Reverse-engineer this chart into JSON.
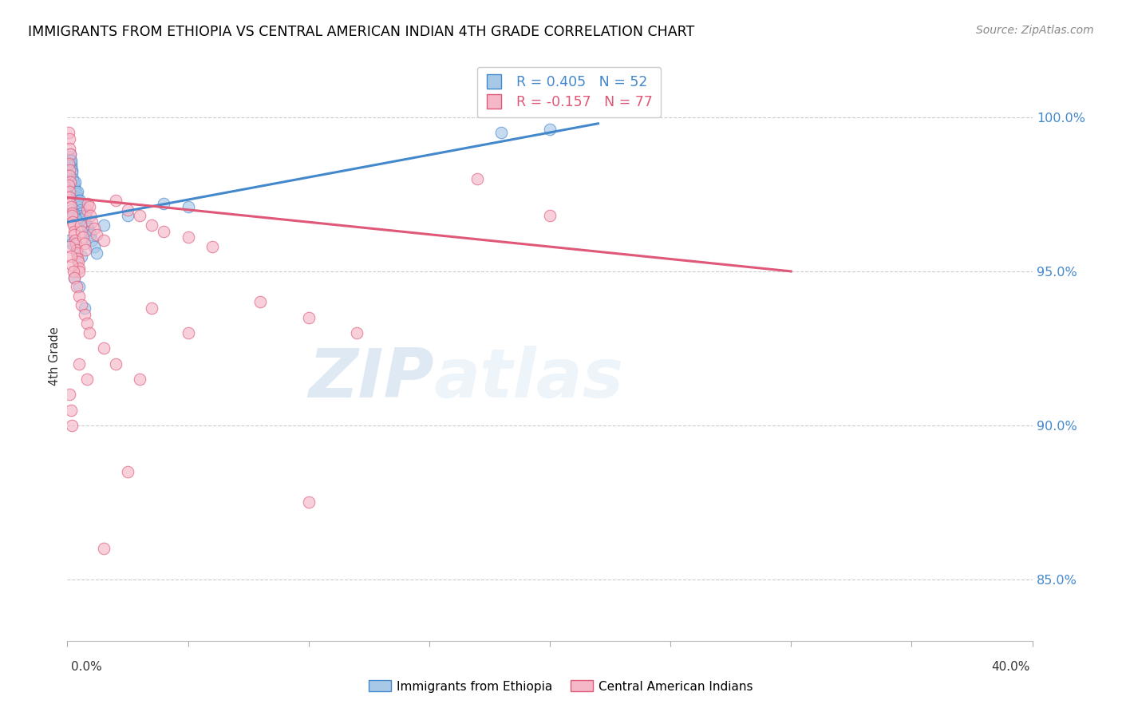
{
  "title": "IMMIGRANTS FROM ETHIOPIA VS CENTRAL AMERICAN INDIAN 4TH GRADE CORRELATION CHART",
  "source": "Source: ZipAtlas.com",
  "ylabel": "4th Grade",
  "ytick_values": [
    85.0,
    90.0,
    95.0,
    100.0
  ],
  "legend_label_blue": "Immigrants from Ethiopia",
  "legend_label_pink": "Central American Indians",
  "watermark_zip": "ZIP",
  "watermark_atlas": "atlas",
  "blue_color": "#a8c8e8",
  "pink_color": "#f4b8c8",
  "line_blue": "#4488cc",
  "line_pink": "#e05878",
  "blue_scatter": [
    [
      0.05,
      98.6
    ],
    [
      0.08,
      98.5
    ],
    [
      0.1,
      98.7
    ],
    [
      0.12,
      98.8
    ],
    [
      0.13,
      98.6
    ],
    [
      0.14,
      98.5
    ],
    [
      0.15,
      98.4
    ],
    [
      0.16,
      98.6
    ],
    [
      0.18,
      98.3
    ],
    [
      0.2,
      98.2
    ],
    [
      0.22,
      98.0
    ],
    [
      0.25,
      97.9
    ],
    [
      0.28,
      97.8
    ],
    [
      0.3,
      97.7
    ],
    [
      0.32,
      97.9
    ],
    [
      0.35,
      97.6
    ],
    [
      0.38,
      97.5
    ],
    [
      0.4,
      97.4
    ],
    [
      0.42,
      97.6
    ],
    [
      0.45,
      97.3
    ],
    [
      0.48,
      97.2
    ],
    [
      0.5,
      97.1
    ],
    [
      0.52,
      97.3
    ],
    [
      0.55,
      97.0
    ],
    [
      0.58,
      96.9
    ],
    [
      0.6,
      96.8
    ],
    [
      0.65,
      96.7
    ],
    [
      0.7,
      96.6
    ],
    [
      0.75,
      96.8
    ],
    [
      0.8,
      96.5
    ],
    [
      0.85,
      96.4
    ],
    [
      0.9,
      96.3
    ],
    [
      0.95,
      96.2
    ],
    [
      1.0,
      96.0
    ],
    [
      1.1,
      95.8
    ],
    [
      1.2,
      95.6
    ],
    [
      1.5,
      96.5
    ],
    [
      2.5,
      96.8
    ],
    [
      0.3,
      94.8
    ],
    [
      0.5,
      94.5
    ],
    [
      0.7,
      93.8
    ],
    [
      18.0,
      99.5
    ],
    [
      20.0,
      99.6
    ],
    [
      0.1,
      96.0
    ],
    [
      0.2,
      95.9
    ],
    [
      0.4,
      95.7
    ],
    [
      0.6,
      95.5
    ],
    [
      0.15,
      97.0
    ],
    [
      0.25,
      96.9
    ],
    [
      0.35,
      96.7
    ],
    [
      4.0,
      97.2
    ],
    [
      5.0,
      97.1
    ]
  ],
  "pink_scatter": [
    [
      0.05,
      99.5
    ],
    [
      0.08,
      99.3
    ],
    [
      0.1,
      99.0
    ],
    [
      0.12,
      98.8
    ],
    [
      0.05,
      98.5
    ],
    [
      0.08,
      98.3
    ],
    [
      0.1,
      98.1
    ],
    [
      0.12,
      97.9
    ],
    [
      0.05,
      97.8
    ],
    [
      0.08,
      97.6
    ],
    [
      0.1,
      97.4
    ],
    [
      0.12,
      97.2
    ],
    [
      0.15,
      97.1
    ],
    [
      0.18,
      96.9
    ],
    [
      0.2,
      96.8
    ],
    [
      0.22,
      96.6
    ],
    [
      0.25,
      96.5
    ],
    [
      0.28,
      96.3
    ],
    [
      0.3,
      96.2
    ],
    [
      0.32,
      96.0
    ],
    [
      0.35,
      95.9
    ],
    [
      0.38,
      95.7
    ],
    [
      0.4,
      95.6
    ],
    [
      0.42,
      95.4
    ],
    [
      0.45,
      95.3
    ],
    [
      0.48,
      95.1
    ],
    [
      0.5,
      95.0
    ],
    [
      0.55,
      96.5
    ],
    [
      0.6,
      96.3
    ],
    [
      0.65,
      96.1
    ],
    [
      0.7,
      95.9
    ],
    [
      0.75,
      95.7
    ],
    [
      0.8,
      97.0
    ],
    [
      0.85,
      97.2
    ],
    [
      0.9,
      97.1
    ],
    [
      0.95,
      96.8
    ],
    [
      1.0,
      96.6
    ],
    [
      1.1,
      96.4
    ],
    [
      1.2,
      96.2
    ],
    [
      1.5,
      96.0
    ],
    [
      2.0,
      97.3
    ],
    [
      2.5,
      97.0
    ],
    [
      3.0,
      96.8
    ],
    [
      3.5,
      96.5
    ],
    [
      4.0,
      96.3
    ],
    [
      5.0,
      96.1
    ],
    [
      6.0,
      95.8
    ],
    [
      0.1,
      95.8
    ],
    [
      0.15,
      95.5
    ],
    [
      0.2,
      95.2
    ],
    [
      0.25,
      95.0
    ],
    [
      0.3,
      94.8
    ],
    [
      0.4,
      94.5
    ],
    [
      0.5,
      94.2
    ],
    [
      0.6,
      93.9
    ],
    [
      0.7,
      93.6
    ],
    [
      0.8,
      93.3
    ],
    [
      0.9,
      93.0
    ],
    [
      1.5,
      92.5
    ],
    [
      2.0,
      92.0
    ],
    [
      3.0,
      91.5
    ],
    [
      3.5,
      93.8
    ],
    [
      5.0,
      93.0
    ],
    [
      8.0,
      94.0
    ],
    [
      10.0,
      93.5
    ],
    [
      12.0,
      93.0
    ],
    [
      17.0,
      98.0
    ],
    [
      20.0,
      96.8
    ],
    [
      2.5,
      88.5
    ],
    [
      10.0,
      87.5
    ],
    [
      1.5,
      86.0
    ],
    [
      0.1,
      91.0
    ],
    [
      0.15,
      90.5
    ],
    [
      0.2,
      90.0
    ],
    [
      0.5,
      92.0
    ],
    [
      0.8,
      91.5
    ]
  ],
  "blue_line": [
    [
      0.0,
      96.6
    ],
    [
      22.0,
      99.8
    ]
  ],
  "pink_line": [
    [
      0.0,
      97.4
    ],
    [
      30.0,
      95.0
    ]
  ],
  "xmin": 0.0,
  "xmax": 40.0,
  "ymin": 83.0,
  "ymax": 101.5
}
